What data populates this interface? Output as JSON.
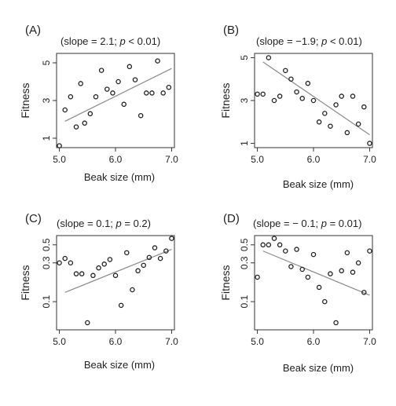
{
  "chart_data": [
    {
      "type": "scatter",
      "panel": "(A)",
      "subtitle": {
        "pre": "(slope = 2.1; ",
        "p": "p",
        "post": " < 0.01)"
      },
      "xlabel": "Beak size (mm)",
      "ylabel": "Fitness",
      "xlim": [
        4.95,
        7.05
      ],
      "ylim": [
        0.5,
        5.5
      ],
      "yscale": "linear",
      "xticks": [
        5.0,
        6.0,
        7.0
      ],
      "xtick_labels": [
        "5.0",
        "6.0",
        "7.0"
      ],
      "yticks": [
        1,
        3,
        5
      ],
      "ytick_labels": [
        "1",
        "3",
        "5"
      ],
      "points": [
        {
          "x": 5.0,
          "y": 0.6
        },
        {
          "x": 5.1,
          "y": 2.5
        },
        {
          "x": 5.2,
          "y": 3.2
        },
        {
          "x": 5.3,
          "y": 1.6
        },
        {
          "x": 5.38,
          "y": 3.9
        },
        {
          "x": 5.45,
          "y": 1.8
        },
        {
          "x": 5.55,
          "y": 2.3
        },
        {
          "x": 5.65,
          "y": 3.2
        },
        {
          "x": 5.75,
          "y": 4.6
        },
        {
          "x": 5.85,
          "y": 3.6
        },
        {
          "x": 5.95,
          "y": 3.4
        },
        {
          "x": 6.05,
          "y": 4.0
        },
        {
          "x": 6.15,
          "y": 2.8
        },
        {
          "x": 6.25,
          "y": 4.8
        },
        {
          "x": 6.35,
          "y": 4.1
        },
        {
          "x": 6.45,
          "y": 2.2
        },
        {
          "x": 6.55,
          "y": 3.4
        },
        {
          "x": 6.65,
          "y": 3.4
        },
        {
          "x": 6.75,
          "y": 5.1
        },
        {
          "x": 6.85,
          "y": 3.4
        },
        {
          "x": 6.95,
          "y": 3.7
        }
      ],
      "fit": [
        {
          "x": 5.1,
          "y": 1.9
        },
        {
          "x": 7.0,
          "y": 4.7
        }
      ]
    },
    {
      "type": "scatter",
      "panel": "(B)",
      "subtitle": {
        "pre": "(slope = −1.9; ",
        "p": "p",
        "post": " < 0.01)"
      },
      "xlabel": "Beak size (mm)",
      "ylabel": "Fitness",
      "xlim": [
        4.95,
        7.05
      ],
      "ylim": [
        0.8,
        5.2
      ],
      "yscale": "linear",
      "xticks": [
        5.0,
        6.0,
        7.0
      ],
      "xtick_labels": [
        "5.0",
        "6.0",
        "7.0"
      ],
      "yticks": [
        1,
        3,
        5
      ],
      "ytick_labels": [
        "1",
        "3",
        "5"
      ],
      "points": [
        {
          "x": 5.0,
          "y": 3.3
        },
        {
          "x": 5.1,
          "y": 3.3
        },
        {
          "x": 5.2,
          "y": 5.0
        },
        {
          "x": 5.3,
          "y": 3.0
        },
        {
          "x": 5.4,
          "y": 3.2
        },
        {
          "x": 5.5,
          "y": 4.4
        },
        {
          "x": 5.6,
          "y": 4.0
        },
        {
          "x": 5.7,
          "y": 3.4
        },
        {
          "x": 5.8,
          "y": 3.1
        },
        {
          "x": 5.9,
          "y": 3.8
        },
        {
          "x": 6.0,
          "y": 3.0
        },
        {
          "x": 6.1,
          "y": 2.0
        },
        {
          "x": 6.2,
          "y": 2.4
        },
        {
          "x": 6.3,
          "y": 1.8
        },
        {
          "x": 6.4,
          "y": 2.8
        },
        {
          "x": 6.5,
          "y": 3.2
        },
        {
          "x": 6.6,
          "y": 1.5
        },
        {
          "x": 6.7,
          "y": 3.2
        },
        {
          "x": 6.8,
          "y": 1.9
        },
        {
          "x": 6.9,
          "y": 2.7
        },
        {
          "x": 7.0,
          "y": 1.0
        }
      ],
      "fit": [
        {
          "x": 5.1,
          "y": 4.8
        },
        {
          "x": 7.0,
          "y": 1.4
        }
      ]
    },
    {
      "type": "scatter",
      "panel": "(C)",
      "subtitle": {
        "pre": "(slope = 0.1; ",
        "p": "p",
        "post": " = 0.2)"
      },
      "xlabel": "Beak size (mm)",
      "ylabel": "Fitness",
      "xlim": [
        4.95,
        7.05
      ],
      "ylim": [
        0.045,
        0.65
      ],
      "yscale": "log",
      "xticks": [
        5.0,
        6.0,
        7.0
      ],
      "xtick_labels": [
        "5.0",
        "6.0",
        "7.0"
      ],
      "yticks": [
        0.1,
        0.3,
        0.5
      ],
      "ytick_labels": [
        "0.1",
        "0.3",
        "0.5"
      ],
      "points": [
        {
          "x": 5.0,
          "y": 0.3
        },
        {
          "x": 5.1,
          "y": 0.34
        },
        {
          "x": 5.2,
          "y": 0.3
        },
        {
          "x": 5.3,
          "y": 0.22
        },
        {
          "x": 5.4,
          "y": 0.22
        },
        {
          "x": 5.5,
          "y": 0.055
        },
        {
          "x": 5.6,
          "y": 0.21
        },
        {
          "x": 5.7,
          "y": 0.26
        },
        {
          "x": 5.8,
          "y": 0.29
        },
        {
          "x": 5.9,
          "y": 0.33
        },
        {
          "x": 6.0,
          "y": 0.21
        },
        {
          "x": 6.1,
          "y": 0.09
        },
        {
          "x": 6.2,
          "y": 0.4
        },
        {
          "x": 6.3,
          "y": 0.14
        },
        {
          "x": 6.4,
          "y": 0.24
        },
        {
          "x": 6.5,
          "y": 0.28
        },
        {
          "x": 6.6,
          "y": 0.35
        },
        {
          "x": 6.7,
          "y": 0.46
        },
        {
          "x": 6.8,
          "y": 0.34
        },
        {
          "x": 6.9,
          "y": 0.42
        },
        {
          "x": 7.0,
          "y": 0.6
        }
      ],
      "fit": [
        {
          "x": 5.1,
          "y": 0.13
        },
        {
          "x": 7.0,
          "y": 0.44
        }
      ]
    },
    {
      "type": "scatter",
      "panel": "(D)",
      "subtitle": {
        "pre": "(slope = − 0.1; ",
        "p": "p",
        "post": " = 0.01)"
      },
      "xlabel": "Beak size (mm)",
      "ylabel": "Fitness",
      "xlim": [
        4.95,
        7.05
      ],
      "ylim": [
        0.045,
        0.65
      ],
      "yscale": "log",
      "xticks": [
        5.0,
        6.0,
        7.0
      ],
      "xtick_labels": [
        "5.0",
        "6.0",
        "7.0"
      ],
      "yticks": [
        0.1,
        0.3,
        0.5
      ],
      "ytick_labels": [
        "0.1",
        "0.3",
        "0.5"
      ],
      "points": [
        {
          "x": 5.0,
          "y": 0.2
        },
        {
          "x": 5.1,
          "y": 0.5
        },
        {
          "x": 5.2,
          "y": 0.5
        },
        {
          "x": 5.3,
          "y": 0.6
        },
        {
          "x": 5.4,
          "y": 0.5
        },
        {
          "x": 5.5,
          "y": 0.42
        },
        {
          "x": 5.6,
          "y": 0.27
        },
        {
          "x": 5.7,
          "y": 0.44
        },
        {
          "x": 5.8,
          "y": 0.25
        },
        {
          "x": 5.9,
          "y": 0.2
        },
        {
          "x": 6.0,
          "y": 0.38
        },
        {
          "x": 6.1,
          "y": 0.15
        },
        {
          "x": 6.2,
          "y": 0.1
        },
        {
          "x": 6.3,
          "y": 0.22
        },
        {
          "x": 6.4,
          "y": 0.055
        },
        {
          "x": 6.5,
          "y": 0.24
        },
        {
          "x": 6.6,
          "y": 0.4
        },
        {
          "x": 6.7,
          "y": 0.23
        },
        {
          "x": 6.8,
          "y": 0.3
        },
        {
          "x": 6.9,
          "y": 0.13
        },
        {
          "x": 7.0,
          "y": 0.42
        }
      ],
      "fit": [
        {
          "x": 5.1,
          "y": 0.42
        },
        {
          "x": 7.0,
          "y": 0.12
        }
      ]
    }
  ]
}
